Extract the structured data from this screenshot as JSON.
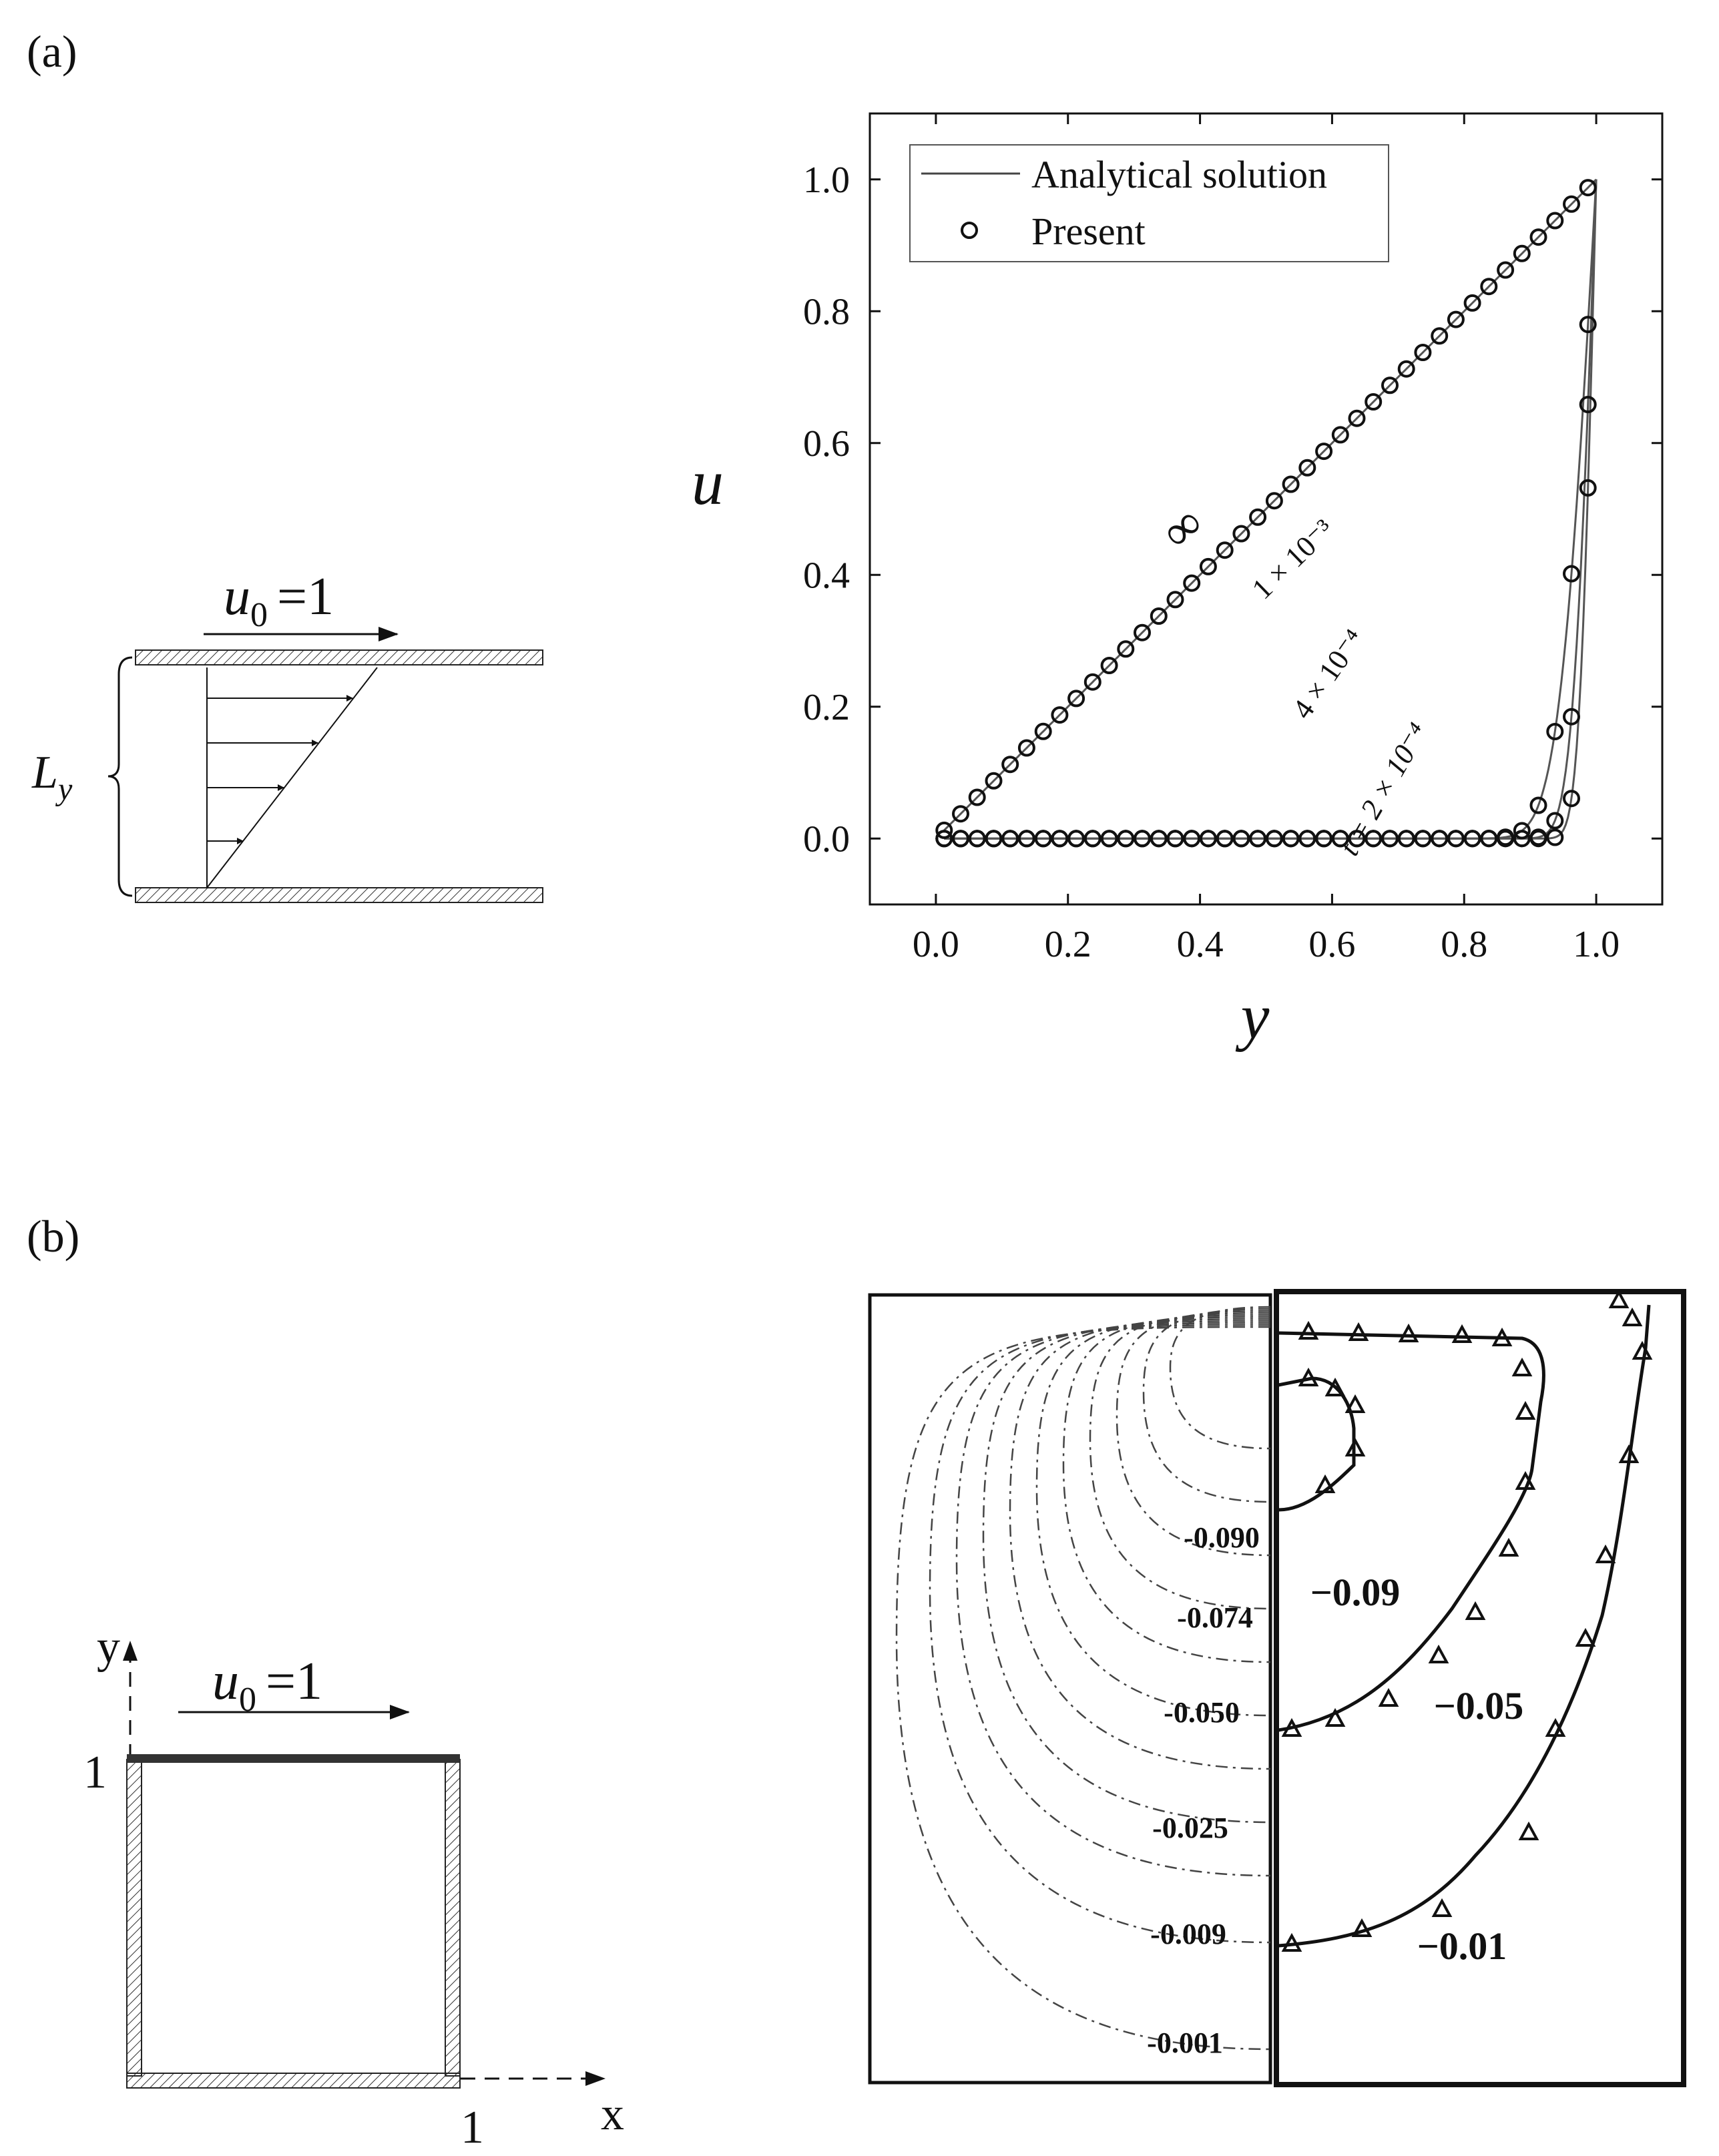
{
  "panel_a": {
    "label": "(a)",
    "schematic": {
      "top_velocity": "u",
      "top_velocity_sub": "0",
      "top_velocity_eq": "=1",
      "height_label": "L",
      "height_sub": "y"
    }
  },
  "panel_b": {
    "label": "(b)",
    "schematic": {
      "top_velocity": "u",
      "top_velocity_sub": "0",
      "top_velocity_eq": "=1",
      "axis_y": "y",
      "axis_x": "x",
      "tick_y": "1",
      "tick_x": "1"
    },
    "contours_left": [
      "-0.090",
      "-0.074",
      "-0.050",
      "-0.025",
      "-0.009",
      "-0.001"
    ],
    "contours_right": [
      "−0.09",
      "−0.05",
      "−0.01"
    ]
  },
  "chart_data": {
    "type": "line",
    "xlabel": "y",
    "ylabel": "u",
    "xlim": [
      -0.1,
      1.1
    ],
    "ylim": [
      -0.1,
      1.1
    ],
    "xticks": [
      "0.0",
      "0.2",
      "0.4",
      "0.6",
      "0.8",
      "1.0"
    ],
    "yticks": [
      "0.0",
      "0.2",
      "0.4",
      "0.6",
      "0.8",
      "1.0"
    ],
    "legend": {
      "position": "top-left",
      "entries": [
        "Analytical solution",
        "Present"
      ]
    },
    "curve_labels": [
      "∞",
      "1 × 10⁻³",
      "4 × 10⁻⁴",
      "t = 2 × 10⁻⁴"
    ],
    "series": [
      {
        "t": 0.001
      },
      {
        "t": 0.0004
      },
      {
        "t": 0.0002
      }
    ],
    "steady_line": {
      "x": [
        0,
        1
      ],
      "y": [
        0,
        1
      ]
    },
    "markers_x_range": [
      0.0125,
      0.9875
    ],
    "markers_count": 40
  }
}
